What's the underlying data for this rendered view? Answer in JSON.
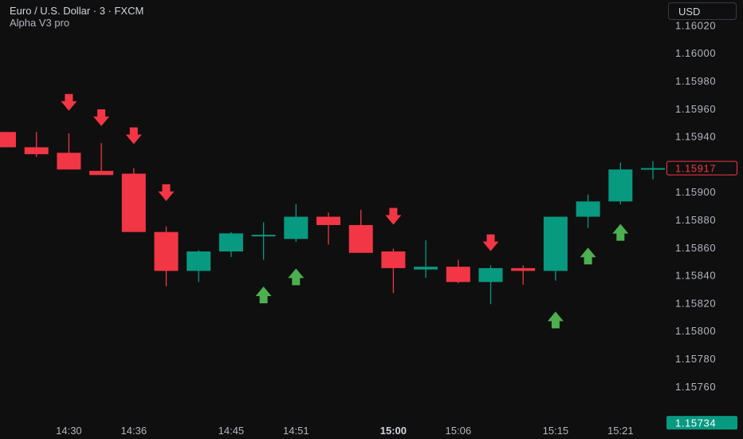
{
  "header": {
    "symbol": "Euro / U.S. Dollar · 3 · FXCM",
    "indicator": "Alpha V3 pro",
    "currency": "USD"
  },
  "colors": {
    "background": "#0f0f0f",
    "up": "#089981",
    "down": "#f23645",
    "buy_arrow": "#4caf50",
    "sell_arrow": "#f23645",
    "axis_text": "#b2b5be"
  },
  "chart_data": {
    "type": "candlestick",
    "title": "Euro / U.S. Dollar · 3 · FXCM",
    "ylim": [
      1.15722,
      1.16038
    ],
    "y_ticks": [
      "1.16020",
      "1.16000",
      "1.15980",
      "1.15960",
      "1.15940",
      "1.15900",
      "1.15880",
      "1.15860",
      "1.15840",
      "1.15820",
      "1.15800",
      "1.15780",
      "1.15760"
    ],
    "x_ticks": [
      {
        "index": 2,
        "label": "14:30",
        "bold": false
      },
      {
        "index": 4,
        "label": "14:36",
        "bold": false
      },
      {
        "index": 7,
        "label": "14:45",
        "bold": false
      },
      {
        "index": 9,
        "label": "14:51",
        "bold": false
      },
      {
        "index": 12,
        "label": "15:00",
        "bold": true
      },
      {
        "index": 14,
        "label": "15:06",
        "bold": false
      },
      {
        "index": 17,
        "label": "15:15",
        "bold": false
      },
      {
        "index": 19,
        "label": "15:21",
        "bold": false
      }
    ],
    "candles": [
      {
        "o": 1.15943,
        "h": 1.15943,
        "l": 1.15932,
        "c": 1.15932
      },
      {
        "o": 1.15932,
        "h": 1.15943,
        "l": 1.15925,
        "c": 1.15927
      },
      {
        "o": 1.15928,
        "h": 1.15942,
        "l": 1.15916,
        "c": 1.15916
      },
      {
        "o": 1.15915,
        "h": 1.15935,
        "l": 1.15913,
        "c": 1.15912
      },
      {
        "o": 1.15913,
        "h": 1.15917,
        "l": 1.15872,
        "c": 1.15871
      },
      {
        "o": 1.15871,
        "h": 1.15875,
        "l": 1.15832,
        "c": 1.15843
      },
      {
        "o": 1.15843,
        "h": 1.15858,
        "l": 1.15835,
        "c": 1.15857
      },
      {
        "o": 1.15857,
        "h": 1.15871,
        "l": 1.15853,
        "c": 1.1587
      },
      {
        "o": 1.15868,
        "h": 1.15878,
        "l": 1.15851,
        "c": 1.15869
      },
      {
        "o": 1.15866,
        "h": 1.15891,
        "l": 1.15864,
        "c": 1.15882
      },
      {
        "o": 1.15882,
        "h": 1.15885,
        "l": 1.15862,
        "c": 1.15876
      },
      {
        "o": 1.15876,
        "h": 1.15887,
        "l": 1.15856,
        "c": 1.15856
      },
      {
        "o": 1.15857,
        "h": 1.15859,
        "l": 1.15827,
        "c": 1.15845
      },
      {
        "o": 1.15844,
        "h": 1.15865,
        "l": 1.15838,
        "c": 1.15846
      },
      {
        "o": 1.15846,
        "h": 1.15851,
        "l": 1.15834,
        "c": 1.15835
      },
      {
        "o": 1.15835,
        "h": 1.15847,
        "l": 1.15819,
        "c": 1.15845
      },
      {
        "o": 1.15845,
        "h": 1.15847,
        "l": 1.15833,
        "c": 1.15843
      },
      {
        "o": 1.15843,
        "h": 1.15882,
        "l": 1.15836,
        "c": 1.15882
      },
      {
        "o": 1.15882,
        "h": 1.15898,
        "l": 1.15874,
        "c": 1.15893
      },
      {
        "o": 1.15893,
        "h": 1.15921,
        "l": 1.15891,
        "c": 1.15916
      },
      {
        "o": 1.15917,
        "h": 1.15922,
        "l": 1.15909,
        "c": 1.15917
      }
    ],
    "signals": [
      {
        "index": 2,
        "type": "sell",
        "y": 1.15964
      },
      {
        "index": 3,
        "type": "sell",
        "y": 1.15953
      },
      {
        "index": 4,
        "type": "sell",
        "y": 1.1594
      },
      {
        "index": 5,
        "type": "sell",
        "y": 1.15899
      },
      {
        "index": 8,
        "type": "buy",
        "y": 1.15826
      },
      {
        "index": 9,
        "type": "buy",
        "y": 1.15839
      },
      {
        "index": 12,
        "type": "sell",
        "y": 1.15882
      },
      {
        "index": 15,
        "type": "sell",
        "y": 1.15863
      },
      {
        "index": 17,
        "type": "buy",
        "y": 1.15808
      },
      {
        "index": 18,
        "type": "buy",
        "y": 1.15854
      },
      {
        "index": 19,
        "type": "buy",
        "y": 1.15871
      }
    ],
    "last_price": {
      "value": 1.15917,
      "label": "1.15917"
    },
    "low_label": {
      "value": 1.15734,
      "label": "1.15734"
    }
  }
}
